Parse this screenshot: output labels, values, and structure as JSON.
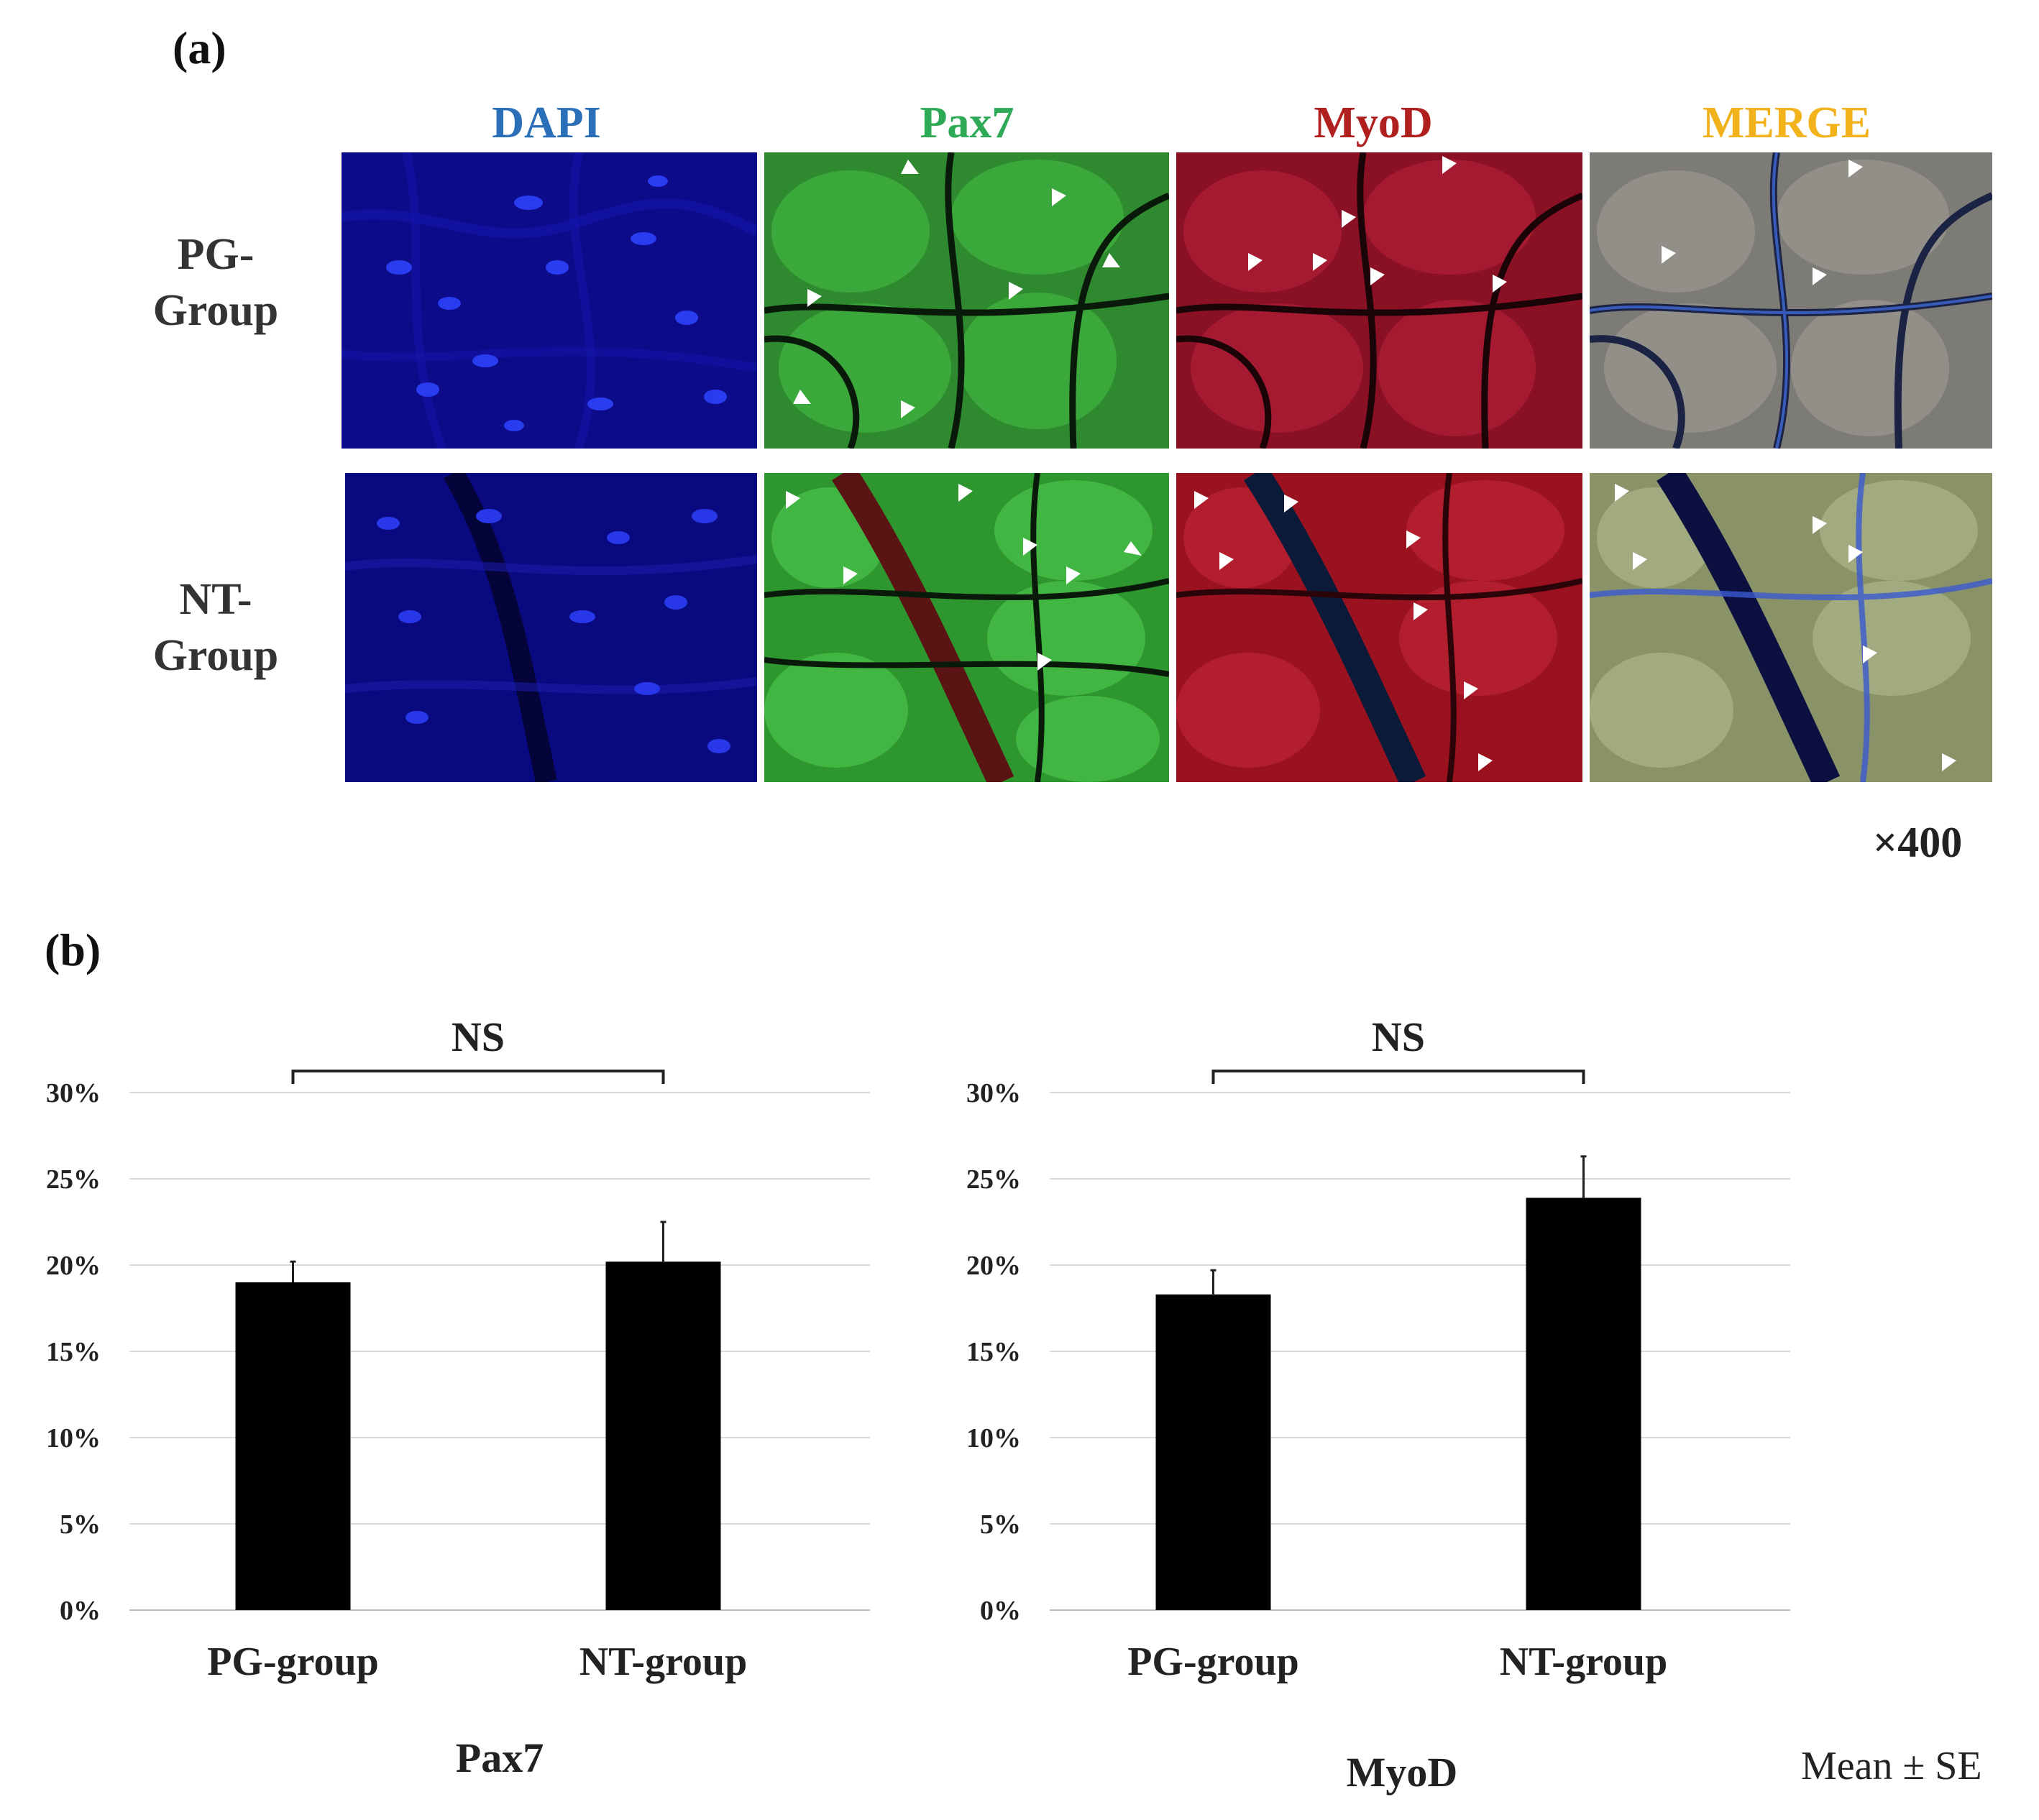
{
  "panel_a": {
    "label": "(a)",
    "columns": [
      {
        "label": "DAPI",
        "color": "#2a6fb8"
      },
      {
        "label": "Pax7",
        "color": "#2eaa57"
      },
      {
        "label": "MyoD",
        "color": "#b0201f"
      },
      {
        "label": "MERGE",
        "color": "#f2b21c"
      }
    ],
    "rows": [
      {
        "label_line1": "PG-",
        "label_line2": "Group"
      },
      {
        "label_line1": "NT-",
        "label_line2": "Group"
      }
    ],
    "magnification": "×400"
  },
  "panel_b": {
    "label": "(b)",
    "note": "Mean ± SE"
  },
  "chart_data": [
    {
      "type": "bar",
      "title": "Pax7",
      "categories": [
        "PG-group",
        "NT-group"
      ],
      "values": [
        19.0,
        20.2
      ],
      "error": [
        1.2,
        2.3
      ],
      "ylim": [
        0,
        30
      ],
      "yticks": [
        "0%",
        "5%",
        "10%",
        "15%",
        "20%",
        "25%",
        "30%"
      ],
      "grid": true,
      "annotation": "NS",
      "bar_color": "#000000"
    },
    {
      "type": "bar",
      "title": "MyoD",
      "categories": [
        "PG-group",
        "NT-group"
      ],
      "values": [
        18.3,
        23.9
      ],
      "error": [
        1.4,
        2.4
      ],
      "ylim": [
        0,
        30
      ],
      "yticks": [
        "0%",
        "5%",
        "10%",
        "15%",
        "20%",
        "25%",
        "30%"
      ],
      "grid": true,
      "annotation": "NS",
      "bar_color": "#000000"
    }
  ]
}
